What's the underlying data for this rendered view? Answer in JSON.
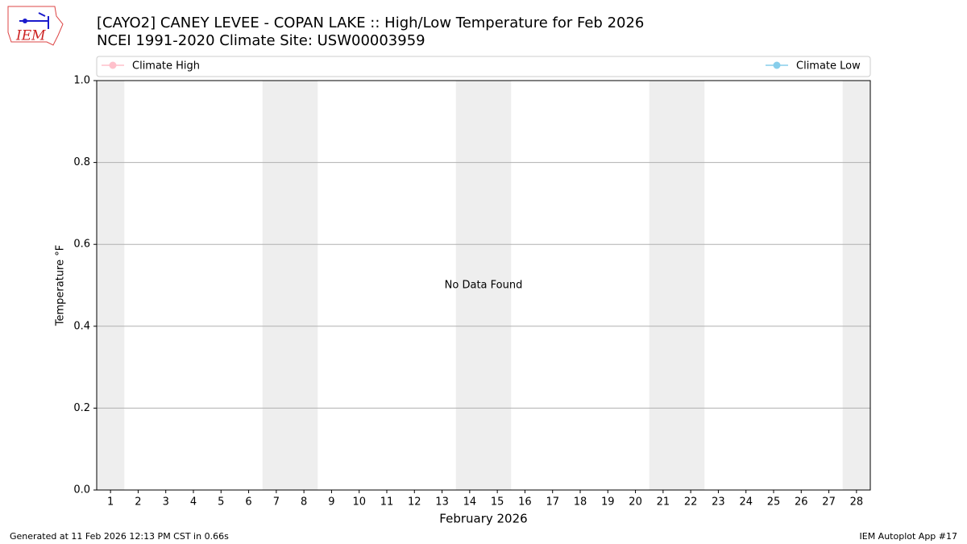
{
  "logo_text": "IEM",
  "chart_data": {
    "type": "line",
    "title": "[CAYO2] CANEY LEVEE - COPAN LAKE :: High/Low Temperature for Feb 2026",
    "subtitle": "NCEI 1991-2020 Climate Site: USW00003959",
    "xlabel": "February 2026",
    "ylabel": "Temperature °F",
    "annotation": "No Data Found",
    "footer_left": "Generated at 11 Feb 2026 12:13 PM CST in 0.66s",
    "footer_right": "IEM Autoplot App #17",
    "x": [],
    "series": [
      {
        "name": "Climate High",
        "color": "#ffc0cb",
        "values": []
      },
      {
        "name": "Climate Low",
        "color": "#87ceeb",
        "values": []
      }
    ],
    "weekend_days": [
      1,
      7,
      8,
      14,
      15,
      21,
      22,
      28
    ],
    "shade_color": "#eeeeee",
    "xlim": [
      0.5,
      28.5
    ],
    "xticks": [
      1,
      2,
      3,
      4,
      5,
      6,
      7,
      8,
      9,
      10,
      11,
      12,
      13,
      14,
      15,
      16,
      17,
      18,
      19,
      20,
      21,
      22,
      23,
      24,
      25,
      26,
      27,
      28
    ],
    "ylim": [
      0,
      1
    ],
    "yticks": [
      {
        "value": 0,
        "label": "0.0"
      },
      0.2,
      0.4,
      0.6,
      0.8,
      {
        "value": 1,
        "label": "1.0"
      }
    ],
    "grid": true,
    "legend": "top"
  }
}
